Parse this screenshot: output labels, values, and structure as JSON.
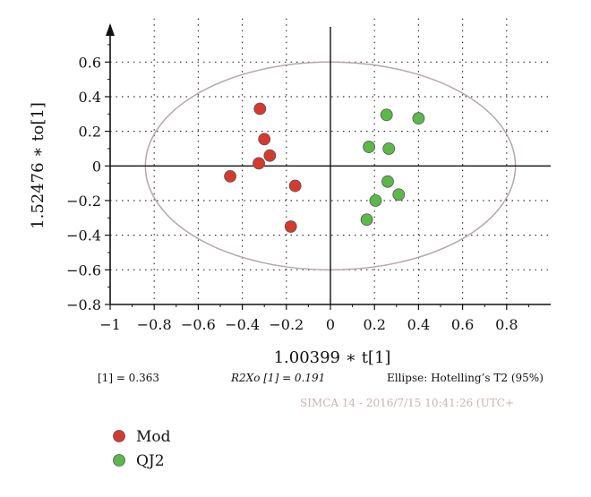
{
  "chart_data": {
    "type": "scatter",
    "xlabel": "1.00399 ∗ t[1]",
    "ylabel": "1.52476 ∗ to[1]",
    "xlim": [
      -1,
      1
    ],
    "ylim": [
      -0.8,
      0.8
    ],
    "x_ticks": [
      "−1",
      "−0.8",
      "−0.6",
      "−0.4",
      "−0.2",
      "0",
      "0.2",
      "0.4",
      "0.6",
      "0.8"
    ],
    "y_ticks": [
      "−0.8",
      "−0.6",
      "−0.4",
      "−0.2",
      "0",
      "0.2",
      "0.4",
      "0.6"
    ],
    "grid": true,
    "ellipse": {
      "cx": 0,
      "cy": 0,
      "rx": 0.84,
      "ry": 0.6,
      "color": "#b3a7a7"
    },
    "series": [
      {
        "name": "Mod",
        "color": "#d63a2f",
        "points": [
          [
            -0.32,
            0.33
          ],
          [
            -0.3,
            0.155
          ],
          [
            -0.275,
            0.06
          ],
          [
            -0.325,
            0.015
          ],
          [
            -0.455,
            -0.06
          ],
          [
            -0.16,
            -0.115
          ],
          [
            -0.18,
            -0.35
          ]
        ]
      },
      {
        "name": "QJ2",
        "color": "#5cb949",
        "points": [
          [
            0.255,
            0.295
          ],
          [
            0.4,
            0.275
          ],
          [
            0.175,
            0.11
          ],
          [
            0.265,
            0.1
          ],
          [
            0.26,
            -0.09
          ],
          [
            0.31,
            -0.165
          ],
          [
            0.205,
            -0.2
          ],
          [
            0.165,
            -0.31
          ]
        ]
      }
    ],
    "legend": {
      "placement": "bottom-left"
    }
  },
  "footer": {
    "r2x_note": "[1] = 0.363",
    "r2xo_note": "R2Xo [1] = 0.191",
    "ellipse_note": "Ellipse: Hotelling’s T2 (95%)",
    "software_note": "SIMCA 14 - 2016/7/15 10:41:26 (UTC+"
  }
}
